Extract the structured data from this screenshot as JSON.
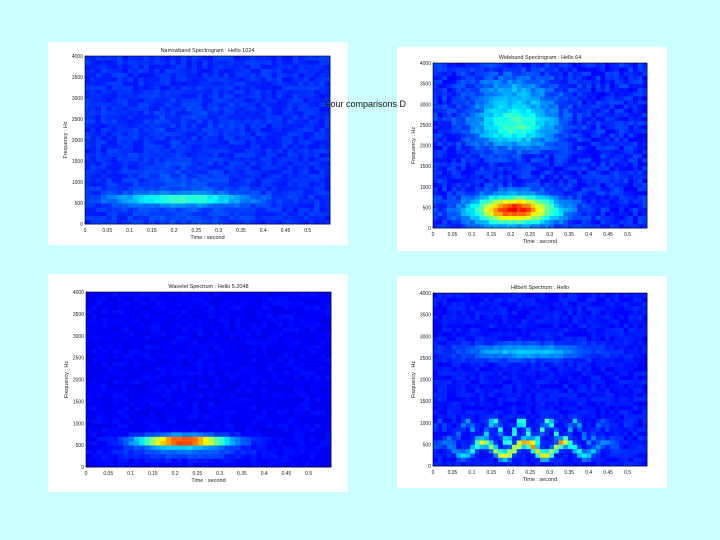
{
  "caption": "Four comparisons D",
  "colors": {
    "background": "#ccffff",
    "plot_background": "#00008f"
  },
  "chart_data": [
    {
      "type": "heatmap",
      "title": "Narrowband Spectrogram : Hello 1024",
      "xlabel": "Time : second",
      "ylabel": "Frequency : Hz",
      "xlim": [
        0,
        0.55
      ],
      "ylim": [
        0,
        4000
      ],
      "x_ticks": [
        "0",
        "0.05",
        "0.1",
        "0.15",
        "0.2",
        "0.25",
        "0.3",
        "0.35",
        "0.4",
        "0.45",
        "0.5"
      ],
      "y_ticks": [
        "0",
        "500",
        "1000",
        "1500",
        "2000",
        "2500",
        "3000",
        "3500",
        "4000"
      ],
      "colormap": "jet"
    },
    {
      "type": "heatmap",
      "title": "Wideband Spectrogram : Hello 64",
      "xlabel": "Time : second",
      "ylabel": "Frequency : Hz",
      "xlim": [
        0,
        0.55
      ],
      "ylim": [
        0,
        4000
      ],
      "x_ticks": [
        "0",
        "0.05",
        "0.1",
        "0.15",
        "0.2",
        "0.25",
        "0.3",
        "0.35",
        "0.4",
        "0.45",
        "0.5"
      ],
      "y_ticks": [
        "0",
        "500",
        "1000",
        "1500",
        "2000",
        "2500",
        "3000",
        "3500",
        "4000"
      ],
      "colormap": "jet"
    },
    {
      "type": "heatmap",
      "title": "Wavelet Spectrum : Hello 5.2048",
      "xlabel": "Time : second",
      "ylabel": "Frequency : Hz",
      "xlim": [
        0,
        0.55
      ],
      "ylim": [
        0,
        4000
      ],
      "x_ticks": [
        "0",
        "0.05",
        "0.1",
        "0.15",
        "0.2",
        "0.25",
        "0.3",
        "0.35",
        "0.4",
        "0.45",
        "0.5"
      ],
      "y_ticks": [
        "0",
        "500",
        "1000",
        "1500",
        "2000",
        "2500",
        "3000",
        "3500",
        "4000"
      ],
      "colormap": "jet"
    },
    {
      "type": "heatmap",
      "title": "Hilbert Spectrum : Hello",
      "xlabel": "Time : second",
      "ylabel": "Frequency : Hz",
      "xlim": [
        0,
        0.55
      ],
      "ylim": [
        0,
        4000
      ],
      "x_ticks": [
        "0",
        "0.05",
        "0.1",
        "0.15",
        "0.2",
        "0.25",
        "0.3",
        "0.35",
        "0.4",
        "0.45",
        "0.5"
      ],
      "y_ticks": [
        "0",
        "500",
        "1000",
        "1500",
        "2000",
        "2500",
        "3000",
        "3500",
        "4000"
      ],
      "colormap": "jet"
    }
  ]
}
